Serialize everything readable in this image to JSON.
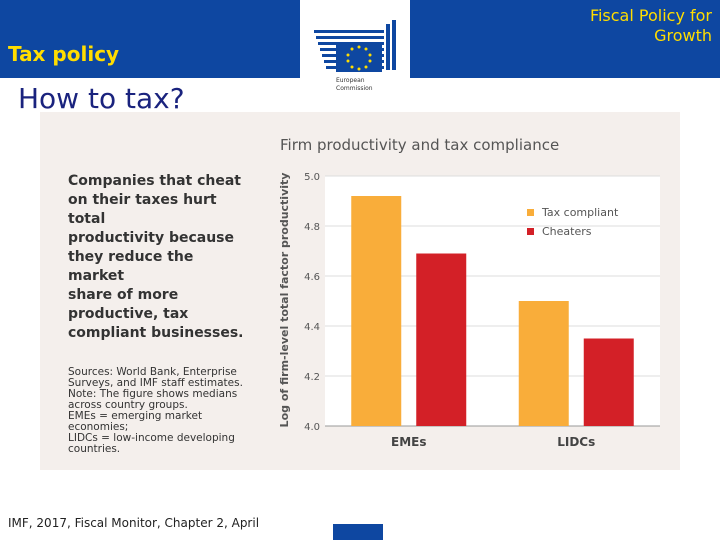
{
  "header": {
    "section": "Tax policy",
    "series_title_line1": "Fiscal Policy for",
    "series_title_line2": "Growth",
    "logo_text_line1": "European",
    "logo_text_line2": "Commission",
    "brand_color": "#0e47a1",
    "accent_color": "#ffdd00"
  },
  "slide": {
    "title": "How to tax?",
    "footer": "IMF, 2017, Fiscal Monitor, Chapter 2,  April"
  },
  "panel": {
    "headline_lines": [
      "Companies that cheat",
      "on their taxes hurt total",
      "productivity because",
      "they reduce the market",
      "share of more",
      "productive, tax",
      "compliant businesses."
    ],
    "notes": [
      "Sources: World Bank, Enterprise",
      "Surveys, and IMF staff estimates.",
      "Note: The figure shows medians",
      "across country groups.",
      "EMEs = emerging market economies;",
      "LIDCs = low-income developing",
      "countries."
    ]
  },
  "chart_data": {
    "type": "bar",
    "title": "Firm productivity and tax compliance",
    "ylabel": "Log of firm-level total factor productivity",
    "xlabel": "",
    "categories": [
      "EMEs",
      "LIDCs"
    ],
    "series": [
      {
        "name": "Tax compliant",
        "color": "#f9ad3a",
        "values": [
          4.92,
          4.5
        ]
      },
      {
        "name": "Cheaters",
        "color": "#d32027",
        "values": [
          4.69,
          4.35
        ]
      }
    ],
    "ylim": [
      4.0,
      5.0
    ],
    "yticks": [
      "4.0",
      "4.2",
      "4.4",
      "4.6",
      "4.8",
      "5.0"
    ],
    "grid": true,
    "legend": "top-right"
  }
}
